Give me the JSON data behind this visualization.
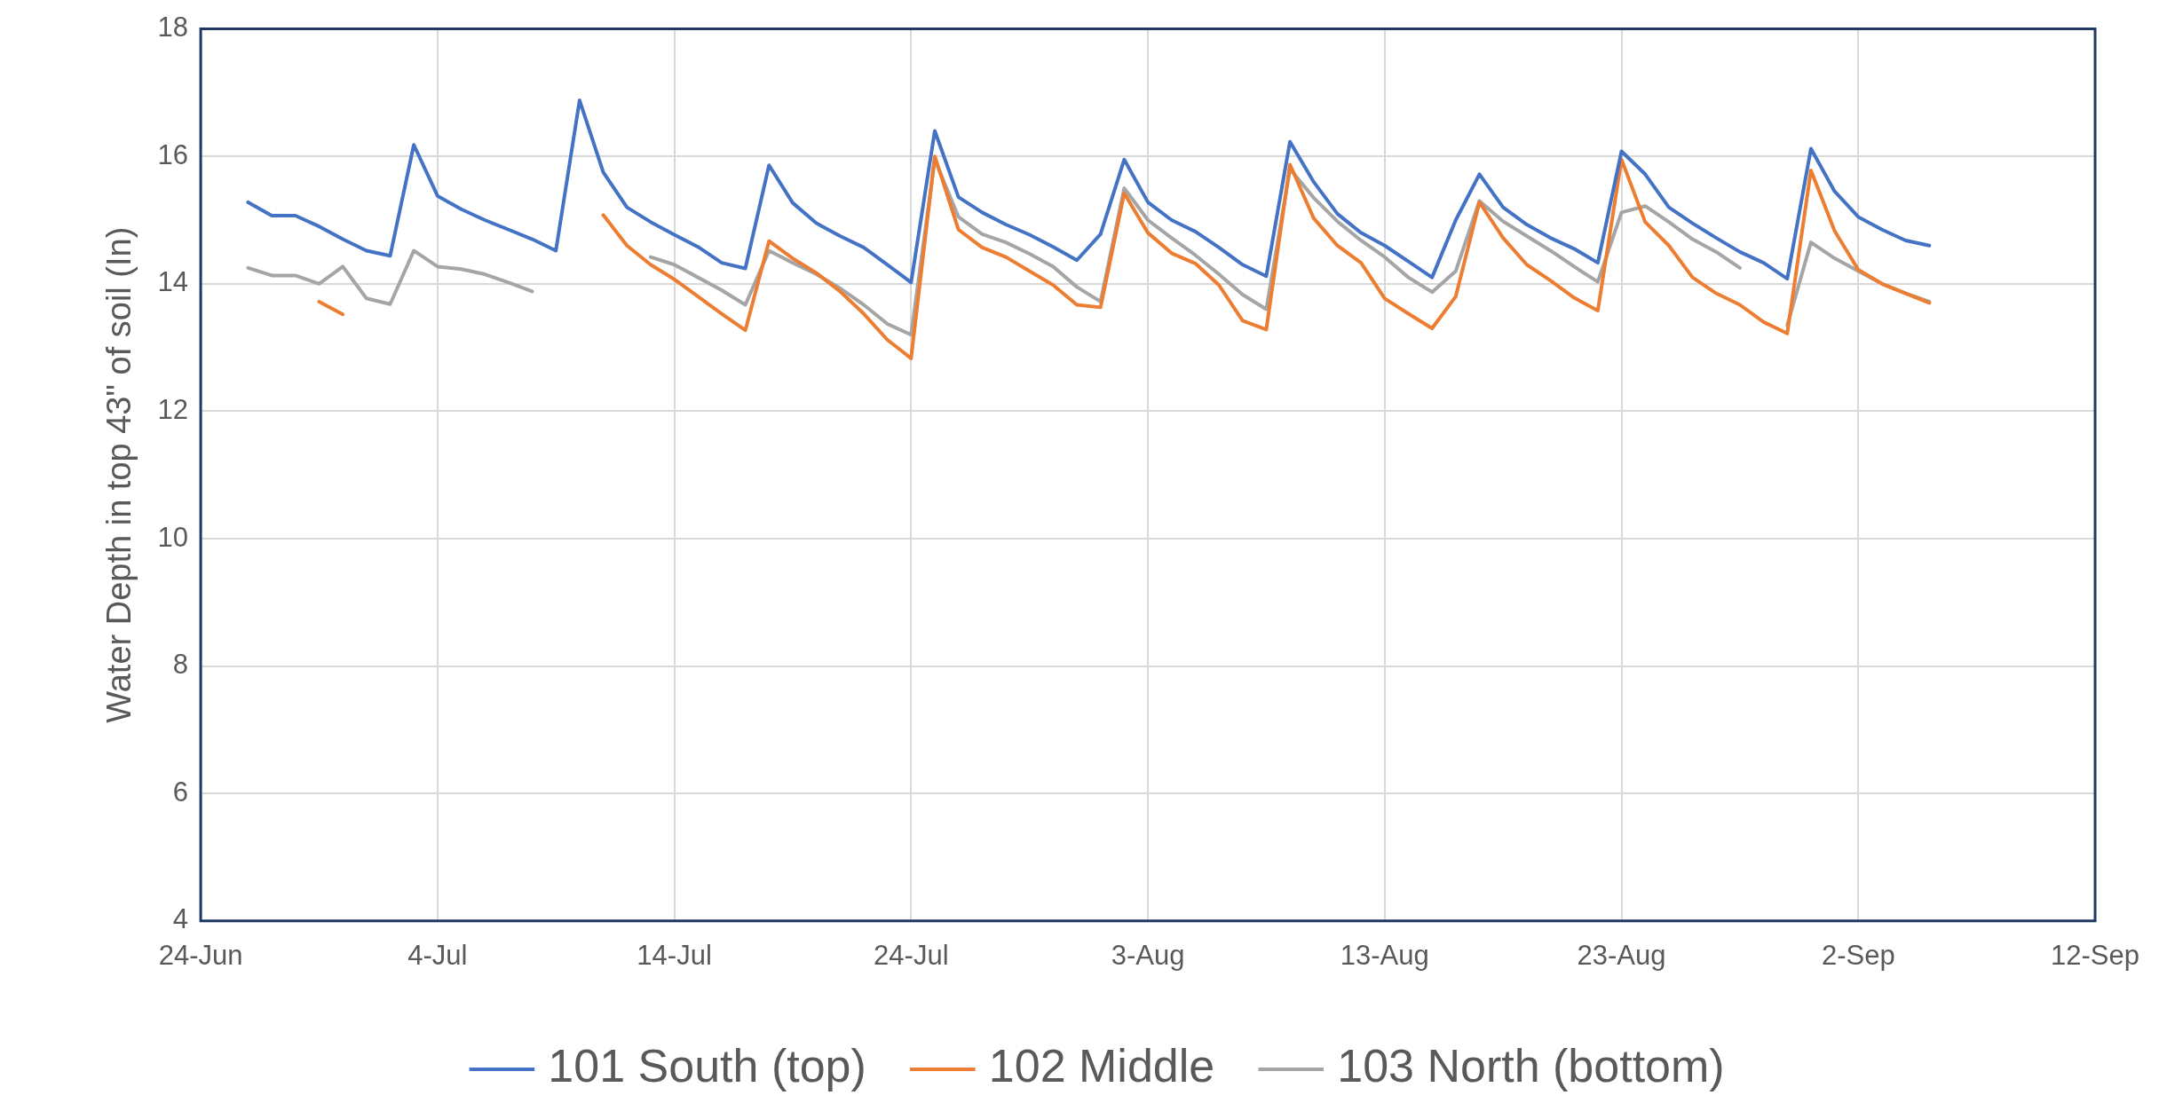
{
  "chart_data": {
    "type": "line",
    "ylabel": "Water Depth in top 43\" of soil (In)",
    "x": [
      "--06-26",
      "--06-27",
      "--06-28",
      "--06-29",
      "--06-30",
      "--07-01",
      "--07-02",
      "--07-03",
      "--07-04",
      "--07-05",
      "--07-06",
      "--07-07",
      "--07-08",
      "--07-09",
      "--07-10",
      "--07-11",
      "--07-12",
      "--07-13",
      "--07-14",
      "--07-15",
      "--07-16",
      "--07-17",
      "--07-18",
      "--07-19",
      "--07-20",
      "--07-21",
      "--07-22",
      "--07-23",
      "--07-24",
      "--07-25",
      "--07-26",
      "--07-27",
      "--07-28",
      "--07-29",
      "--07-30",
      "--07-31",
      "--08-01",
      "--08-02",
      "--08-03",
      "--08-04",
      "--08-05",
      "--08-06",
      "--08-07",
      "--08-08",
      "--08-09",
      "--08-10",
      "--08-11",
      "--08-12",
      "--08-13",
      "--08-14",
      "--08-15",
      "--08-16",
      "--08-17",
      "--08-18",
      "--08-19",
      "--08-20",
      "--08-21",
      "--08-22",
      "--08-23",
      "--08-24",
      "--08-25",
      "--08-26",
      "--08-27",
      "--08-28",
      "--08-29",
      "--08-30",
      "--08-31",
      "--09-01",
      "--09-02",
      "--09-03",
      "--09-04",
      "--09-05"
    ],
    "series": [
      {
        "name": "101 South (top)",
        "color": "#4472c4",
        "values": [
          15.28,
          15.07,
          15.07,
          14.9,
          14.7,
          14.52,
          14.44,
          16.18,
          15.38,
          15.17,
          15.0,
          14.85,
          14.7,
          14.52,
          16.88,
          15.75,
          15.2,
          14.97,
          14.77,
          14.58,
          14.33,
          14.24,
          15.86,
          15.27,
          14.95,
          14.75,
          14.57,
          14.3,
          14.02,
          16.4,
          15.36,
          15.12,
          14.93,
          14.77,
          14.58,
          14.37,
          14.78,
          15.95,
          15.28,
          15.0,
          14.82,
          14.57,
          14.3,
          14.12,
          16.23,
          15.6,
          15.1,
          14.8,
          14.6,
          14.35,
          14.1,
          15.0,
          15.72,
          15.2,
          14.93,
          14.72,
          14.55,
          14.33,
          16.08,
          15.72,
          15.2,
          14.95,
          14.72,
          14.5,
          14.33,
          14.08,
          16.12,
          15.45,
          15.05,
          14.85,
          14.68,
          14.6
        ]
      },
      {
        "name": "102 Middle",
        "color": "#ed7d31",
        "values": [
          null,
          null,
          null,
          13.72,
          13.52,
          null,
          null,
          null,
          null,
          null,
          null,
          null,
          null,
          null,
          null,
          15.08,
          14.6,
          14.3,
          14.07,
          13.8,
          13.53,
          13.27,
          14.67,
          14.4,
          14.17,
          13.88,
          13.53,
          13.12,
          12.83,
          16.0,
          14.85,
          14.57,
          14.42,
          14.2,
          13.98,
          13.67,
          13.63,
          15.42,
          14.8,
          14.48,
          14.32,
          13.98,
          13.42,
          13.28,
          15.87,
          15.03,
          14.6,
          14.33,
          13.77,
          13.53,
          13.3,
          13.8,
          15.28,
          14.72,
          14.3,
          14.05,
          13.78,
          13.58,
          15.95,
          14.97,
          14.6,
          14.1,
          13.85,
          13.67,
          13.4,
          13.22,
          15.78,
          14.83,
          14.22,
          14.0,
          13.85,
          13.7
        ]
      },
      {
        "name": "103 North (bottom)",
        "color": "#a5a5a5",
        "values": [
          14.25,
          14.13,
          14.13,
          14.0,
          14.27,
          13.77,
          13.68,
          14.52,
          14.27,
          14.23,
          14.15,
          14.02,
          13.88,
          null,
          null,
          null,
          null,
          14.42,
          14.3,
          14.1,
          13.9,
          13.67,
          14.52,
          14.33,
          14.15,
          13.93,
          13.67,
          13.37,
          13.2,
          15.95,
          15.05,
          14.78,
          14.65,
          14.47,
          14.27,
          13.95,
          13.72,
          15.5,
          15.0,
          14.72,
          14.45,
          14.15,
          13.83,
          13.6,
          15.8,
          15.35,
          14.98,
          14.68,
          14.42,
          14.1,
          13.87,
          14.2,
          15.3,
          14.98,
          14.75,
          14.52,
          14.27,
          14.03,
          15.12,
          15.22,
          14.97,
          14.7,
          14.5,
          14.25,
          null,
          13.35,
          14.65,
          14.4,
          14.2,
          14.0,
          13.85,
          13.72
        ]
      }
    ],
    "xlim": [
      "--06-24",
      "--09-12"
    ],
    "xticks": [
      {
        "value": "--06-24",
        "label": "24-Jun"
      },
      {
        "value": "--07-04",
        "label": "4-Jul"
      },
      {
        "value": "--07-14",
        "label": "14-Jul"
      },
      {
        "value": "--07-24",
        "label": "24-Jul"
      },
      {
        "value": "--08-03",
        "label": "3-Aug"
      },
      {
        "value": "--08-13",
        "label": "13-Aug"
      },
      {
        "value": "--08-23",
        "label": "23-Aug"
      },
      {
        "value": "--09-02",
        "label": "2-Sep"
      },
      {
        "value": "--09-12",
        "label": "12-Sep"
      }
    ],
    "ylim": [
      4,
      18
    ],
    "yticks": [
      4,
      6,
      8,
      10,
      12,
      14,
      16,
      18
    ],
    "grid": true,
    "legend": "bottom",
    "marker": "none",
    "line_style": "solid"
  }
}
